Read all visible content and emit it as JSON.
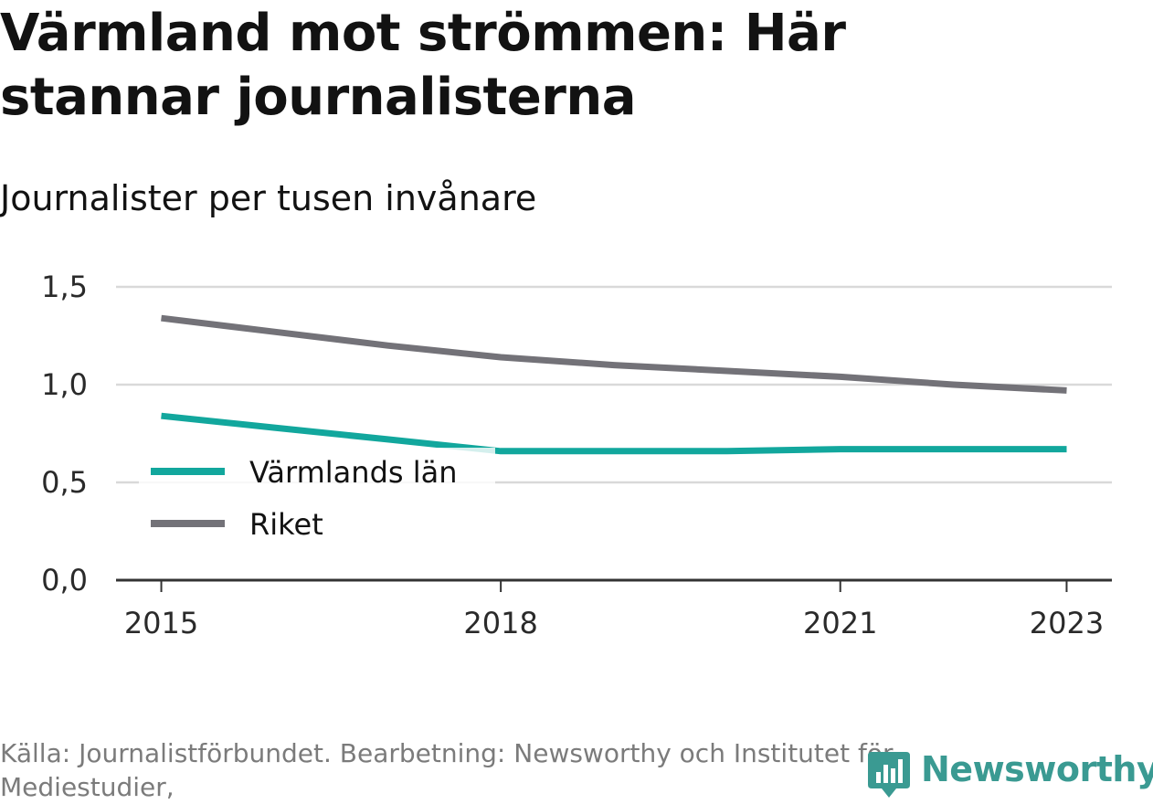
{
  "header": {
    "title": "Värmland mot strömmen: Här stannar journalisterna",
    "subtitle": "Journalister per tusen invånare"
  },
  "footer": {
    "source": "Källa: Journalistförbundet. Bearbetning: Newsworthy och Institutet för Mediestudier,",
    "logo_text": "Newsworthy",
    "logo_icon": "newsworthy-chart-pin-icon"
  },
  "colors": {
    "varmland": "#12a79d",
    "riket": "#737278",
    "grid": "#d9d9d9",
    "axis": "#333333",
    "logo": "#3a9a92"
  },
  "chart_data": {
    "type": "line",
    "title": "Värmland mot strömmen: Här stannar journalisterna",
    "subtitle": "Journalister per tusen invånare",
    "xlabel": "",
    "ylabel": "",
    "x_ticks": [
      2015,
      2018,
      2021,
      2023
    ],
    "x_range": [
      2014.6,
      2023.4
    ],
    "ylim": [
      0,
      1.5
    ],
    "y_ticks": [
      0,
      0.5,
      1.0,
      1.5
    ],
    "y_tick_labels": [
      "0,0",
      "0,5",
      "1,0",
      "1,5"
    ],
    "grid": true,
    "legend_position": "bottom-left",
    "series": [
      {
        "name": "Värmlands län",
        "color": "#12a79d",
        "x": [
          2015,
          2016,
          2017,
          2018,
          2019,
          2020,
          2021,
          2022,
          2023
        ],
        "values": [
          0.84,
          0.78,
          0.72,
          0.66,
          0.66,
          0.66,
          0.67,
          0.67,
          0.67
        ]
      },
      {
        "name": "Riket",
        "color": "#737278",
        "x": [
          2015,
          2016,
          2017,
          2018,
          2019,
          2020,
          2021,
          2022,
          2023
        ],
        "values": [
          1.34,
          1.27,
          1.2,
          1.14,
          1.1,
          1.07,
          1.04,
          1.0,
          0.97
        ]
      }
    ]
  }
}
